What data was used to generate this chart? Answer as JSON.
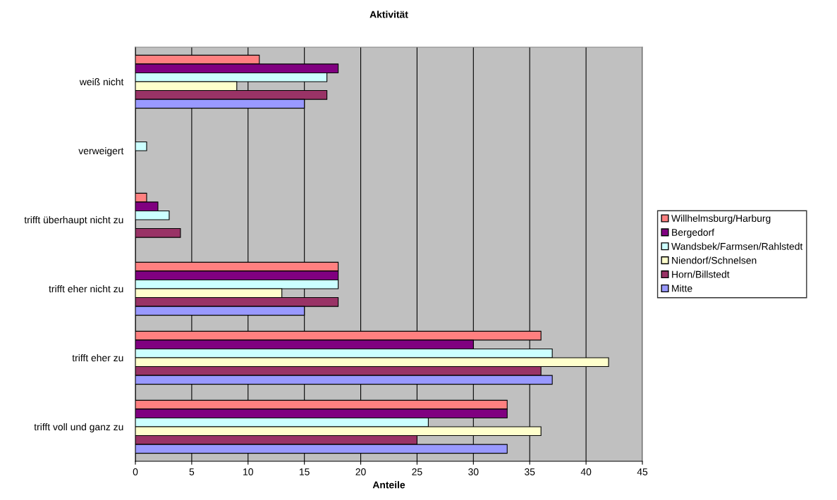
{
  "chart_data": {
    "type": "bar",
    "orientation": "horizontal",
    "title": "Aktivität",
    "xlabel": "Anteile",
    "categories": [
      "weiß nicht",
      "verweigert",
      "trifft überhaupt nicht zu",
      "trifft eher nicht zu",
      "trifft eher zu",
      "trifft voll und ganz zu"
    ],
    "series": [
      {
        "name": "Willhelmsburg/Harburg",
        "color": "#ff8080",
        "values": [
          11,
          null,
          1,
          18,
          36,
          33
        ]
      },
      {
        "name": "Bergedorf",
        "color": "#800080",
        "values": [
          18,
          null,
          2,
          18,
          30,
          33
        ]
      },
      {
        "name": "Wandsbek/Farmsen/Rahlstedt",
        "color": "#ccffff",
        "values": [
          17,
          1,
          3,
          18,
          37,
          26
        ]
      },
      {
        "name": "Niendorf/Schnelsen",
        "color": "#ffffcc",
        "values": [
          9,
          null,
          null,
          13,
          42,
          36
        ]
      },
      {
        "name": "Horn/Billstedt",
        "color": "#993366",
        "values": [
          17,
          null,
          4,
          18,
          36,
          25
        ]
      },
      {
        "name": "Mitte",
        "color": "#9999ff",
        "values": [
          15,
          null,
          null,
          15,
          37,
          33
        ]
      }
    ],
    "xlim": [
      0,
      45
    ],
    "xticks": [
      0,
      5,
      10,
      15,
      20,
      25,
      30,
      35,
      40,
      45
    ],
    "grid": "x",
    "legend": "right"
  }
}
